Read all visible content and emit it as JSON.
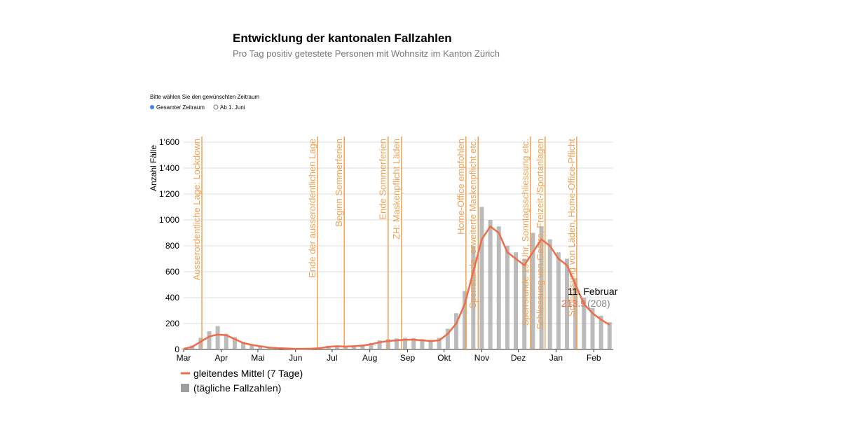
{
  "title": "Entwicklung der kantonalen Fallzahlen",
  "subtitle": "Pro Tag positiv getestete Personen mit Wohnsitz im Kanton Zürich",
  "selector": {
    "prompt": "Bitte wählen Sie den gewünschten Zeitraum",
    "options": [
      "Gesamter Zeitraum",
      "Ab 1. Juni"
    ]
  },
  "chart_data": {
    "type": "bar-line",
    "y_label": "Anzahl Fälle",
    "x": [
      0,
      7,
      14,
      21,
      28,
      35,
      42,
      49,
      56,
      63,
      70,
      77,
      84,
      91,
      98,
      105,
      112,
      119,
      126,
      133,
      140,
      147,
      154,
      161,
      168,
      175,
      182,
      189,
      196,
      203,
      210,
      217,
      224,
      231,
      238,
      245,
      252,
      259,
      266,
      273,
      280,
      287,
      294,
      301,
      308,
      315,
      322,
      329,
      336,
      343,
      350
    ],
    "series": [
      {
        "name": "gleitendes Mittel (7 Tage)",
        "color": "#ef6c4a",
        "values": [
          5,
          20,
          60,
          100,
          115,
          110,
          80,
          50,
          35,
          25,
          15,
          10,
          8,
          5,
          5,
          6,
          10,
          20,
          25,
          22,
          25,
          30,
          40,
          55,
          65,
          70,
          75,
          75,
          70,
          65,
          70,
          120,
          200,
          350,
          600,
          850,
          950,
          900,
          750,
          700,
          650,
          750,
          850,
          800,
          700,
          650,
          500,
          350,
          280,
          230,
          190
        ]
      },
      {
        "name": "(tägliche Fallzahlen)",
        "color": "#9e9e9e",
        "values": [
          8,
          30,
          90,
          140,
          180,
          120,
          95,
          60,
          40,
          30,
          18,
          12,
          10,
          6,
          7,
          8,
          14,
          28,
          30,
          25,
          32,
          38,
          50,
          70,
          80,
          85,
          90,
          88,
          80,
          75,
          90,
          160,
          280,
          450,
          800,
          1100,
          1000,
          950,
          800,
          750,
          700,
          900,
          950,
          850,
          750,
          700,
          550,
          400,
          320,
          260,
          210
        ]
      }
    ],
    "xlim": [
      0,
      353
    ],
    "xticks": [
      {
        "value": 0,
        "label": "Mar"
      },
      {
        "value": 31,
        "label": "Apr"
      },
      {
        "value": 61,
        "label": "Mai"
      },
      {
        "value": 92,
        "label": "Jun"
      },
      {
        "value": 122,
        "label": "Jul"
      },
      {
        "value": 153,
        "label": "Aug"
      },
      {
        "value": 184,
        "label": "Sep"
      },
      {
        "value": 214,
        "label": "Okt"
      },
      {
        "value": 245,
        "label": "Nov"
      },
      {
        "value": 275,
        "label": "Dez"
      },
      {
        "value": 306,
        "label": "Jan"
      },
      {
        "value": 337,
        "label": "Feb"
      }
    ],
    "ylim": [
      0,
      1600
    ],
    "yticks": [
      0,
      200,
      400,
      600,
      800,
      {
        "value": 1000,
        "label": "1'000"
      },
      {
        "value": 1200,
        "label": "1'200"
      },
      {
        "value": 1400,
        "label": "1'400"
      },
      {
        "value": 1600,
        "label": "1'600"
      }
    ],
    "grid": true,
    "events": [
      {
        "x": 15,
        "label": "Ausserordentliche Lage: Lockdown"
      },
      {
        "x": 110,
        "label": "Ende der ausserordentlichen Lage"
      },
      {
        "x": 132,
        "label": "Beginn Sommerferien"
      },
      {
        "x": 168,
        "label": "Ende Sommerferien"
      },
      {
        "x": 179,
        "label": "ZH: Maskenpflicht Läden"
      },
      {
        "x": 232,
        "label": "Home-Office empfohlen"
      },
      {
        "x": 242,
        "label": "Sperrstunde, erweiterte Maskenpflicht etc."
      },
      {
        "x": 285,
        "label": "Sperrstunde 19 Uhr, Sonntagsschliessung etc."
      },
      {
        "x": 297,
        "label": "Schliessung von Gastro, Freizeit-/Sportanlagen"
      },
      {
        "x": 323,
        "label": "Schliessung von Läden, Home-Office-Pflicht"
      }
    ],
    "event_color": "#f0a050",
    "annotation": {
      "date": "11. Februar",
      "avg": "213.9",
      "daily": "(208)"
    }
  }
}
